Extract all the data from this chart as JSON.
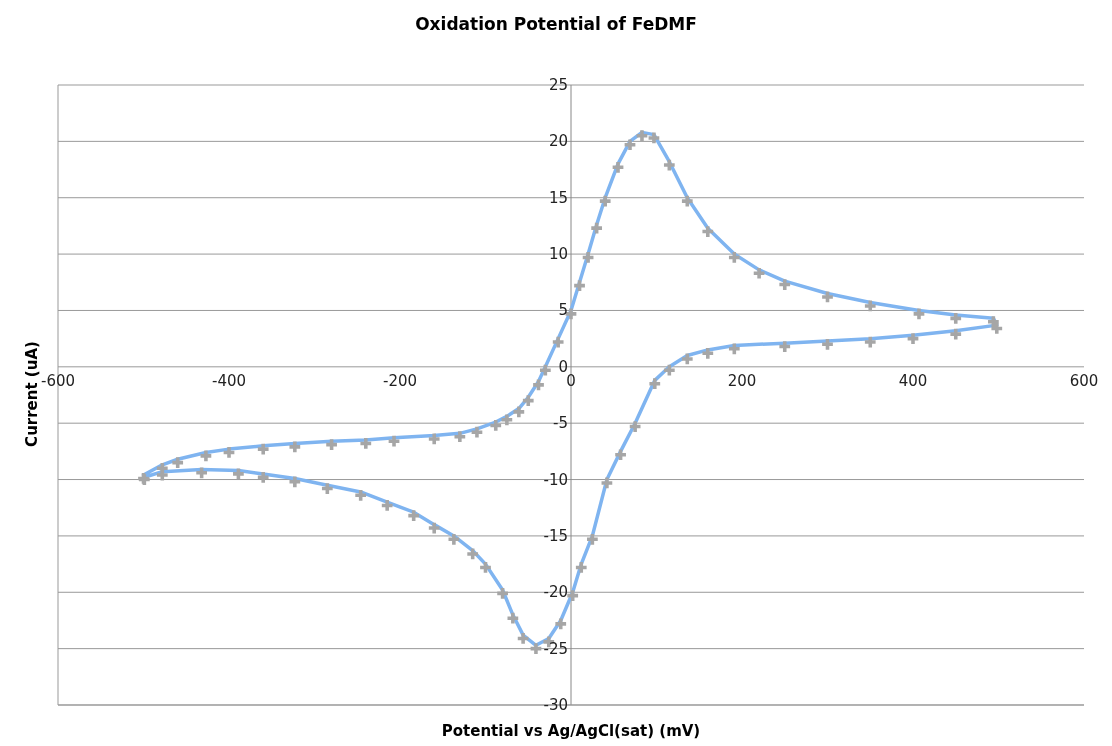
{
  "chart_data": {
    "type": "line",
    "title": "Oxidation Potential of FeDMF",
    "xlabel": "Potential vs Ag/AgCl(sat) (mV)",
    "ylabel": "Current (uA)",
    "x": [
      -500,
      -478,
      -460,
      -427,
      -400,
      -360,
      -323,
      -280,
      -240,
      -207,
      -160,
      -130,
      -110,
      -88,
      -75,
      -61,
      -50,
      -38,
      -30,
      -15,
      0,
      10,
      20,
      30,
      40,
      55,
      69,
      83,
      97,
      115,
      136,
      160,
      191,
      220,
      250,
      300,
      350,
      407,
      450,
      494,
      498,
      450,
      400,
      350,
      300,
      250,
      191,
      160,
      136,
      115,
      98,
      75,
      58,
      42,
      25,
      12,
      2,
      -12,
      -26,
      -41,
      -56,
      -68,
      -80,
      -100,
      -115,
      -137,
      -160,
      -184,
      -215,
      -246,
      -285,
      -323,
      -360,
      -389,
      -432,
      -478,
      -499
    ],
    "series": [
      {
        "type": "scatter",
        "color": "#a6a6a6",
        "marker": "cross",
        "values": [
          -9.9,
          -9.0,
          -8.5,
          -7.9,
          -7.6,
          -7.3,
          -7.1,
          -6.9,
          -6.8,
          -6.6,
          -6.4,
          -6.2,
          -5.8,
          -5.2,
          -4.7,
          -4.0,
          -3.0,
          -1.6,
          -0.3,
          2.2,
          4.7,
          7.2,
          9.7,
          12.3,
          14.7,
          17.7,
          19.7,
          20.5,
          20.3,
          17.9,
          14.7,
          12.0,
          9.7,
          8.3,
          7.3,
          6.2,
          5.4,
          4.7,
          4.3,
          4.0,
          3.4,
          2.9,
          2.5,
          2.2,
          2.0,
          1.8,
          1.6,
          1.2,
          0.7,
          -0.3,
          -1.5,
          -5.3,
          -7.8,
          -10.3,
          -15.3,
          -17.8,
          -20.3,
          -22.8,
          -24.4,
          -25.0,
          -24.1,
          -22.3,
          -20.1,
          -17.8,
          -16.6,
          -15.3,
          -14.3,
          -13.2,
          -12.3,
          -11.4,
          -10.8,
          -10.2,
          -9.8,
          -9.5,
          -9.4,
          -9.6,
          -10.0
        ]
      },
      {
        "color": "#7fb4f0",
        "marker": "none",
        "values": [
          -9.6,
          -8.7,
          -8.2,
          -7.6,
          -7.3,
          -7.0,
          -6.8,
          -6.6,
          -6.5,
          -6.3,
          -6.1,
          -5.9,
          -5.5,
          -4.9,
          -4.4,
          -3.7,
          -2.7,
          -1.3,
          0,
          2.5,
          5,
          7.5,
          10,
          12.6,
          15,
          18,
          20,
          20.8,
          20.6,
          18.2,
          15,
          12.3,
          10,
          8.6,
          7.6,
          6.5,
          5.7,
          5,
          4.6,
          4.3,
          3.7,
          3.2,
          2.8,
          2.5,
          2.3,
          2.1,
          1.9,
          1.5,
          1.0,
          0,
          -1.2,
          -5,
          -7.5,
          -10,
          -15,
          -17.5,
          -20,
          -22.5,
          -24.1,
          -24.7,
          -23.8,
          -22,
          -19.8,
          -17.5,
          -16.3,
          -15,
          -14,
          -12.9,
          -12,
          -11.1,
          -10.5,
          -9.9,
          -9.5,
          -9.2,
          -9.1,
          -9.3,
          -9.8
        ]
      }
    ],
    "xlim": [
      -600,
      600
    ],
    "xticks": [
      -600,
      -400,
      -200,
      0,
      200,
      400,
      600
    ],
    "ylim": [
      -30,
      25
    ],
    "yticks": [
      -30,
      -25,
      -20,
      -15,
      -10,
      -5,
      0,
      5,
      10,
      15,
      20,
      25
    ],
    "grid": "y"
  }
}
